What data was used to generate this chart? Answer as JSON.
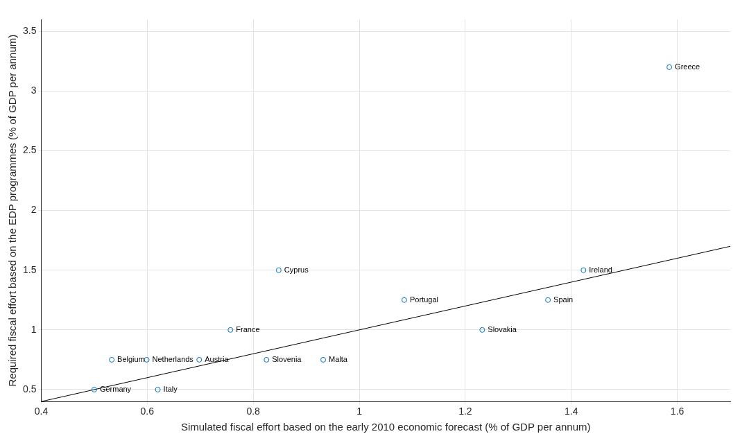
{
  "chart_data": {
    "type": "scatter",
    "xlabel": "Simulated fiscal effort based on the early 2010 economic forecast (% of GDP per annum)",
    "ylabel": "Required fiscal effort based on the EDP programmes (% of GDP per annum)",
    "xlim": [
      0.4,
      1.7
    ],
    "xticks": [
      0.4,
      0.6,
      0.8,
      {
        "value": 1,
        "label": "1"
      },
      1.2,
      1.4,
      1.6
    ],
    "ylim": [
      0.4,
      3.6
    ],
    "yticks": [
      0.5,
      {
        "value": 1,
        "label": "1"
      },
      1.5,
      {
        "value": 2,
        "label": "2"
      },
      2.5,
      {
        "value": 3,
        "label": "3"
      },
      3.5
    ],
    "grid": true,
    "legend": false,
    "marker": "circle",
    "series": [
      {
        "color": "#0072bd",
        "x": [
          1.585,
          1.423,
          1.356,
          1.232,
          1.085,
          0.848,
          0.757,
          0.533,
          0.599,
          0.698,
          0.825,
          0.932,
          0.5,
          0.62
        ],
        "values": [
          3.2,
          1.5,
          1.25,
          1,
          1.25,
          1.5,
          1,
          0.75,
          0.75,
          0.75,
          0.75,
          0.75,
          0.5,
          0.5
        ]
      },
      {
        "type": "line",
        "color": "#000000",
        "marker": "none",
        "x": [
          0.4,
          1.7
        ],
        "values": [
          0.4,
          1.7
        ]
      }
    ],
    "annotations": [
      {
        "text": "Greece",
        "x": 1.585,
        "y": 3.2
      },
      {
        "text": "Ireland",
        "x": 1.423,
        "y": 1.5
      },
      {
        "text": "Spain",
        "x": 1.356,
        "y": 1.25
      },
      {
        "text": "Slovakia",
        "x": 1.232,
        "y": 1
      },
      {
        "text": "Portugal",
        "x": 1.085,
        "y": 1.25
      },
      {
        "text": "Cyprus",
        "x": 0.848,
        "y": 1.5
      },
      {
        "text": "France",
        "x": 0.757,
        "y": 1
      },
      {
        "text": "Belgium",
        "x": 0.533,
        "y": 0.75
      },
      {
        "text": "Netherlands",
        "x": 0.599,
        "y": 0.75
      },
      {
        "text": "Austria",
        "x": 0.698,
        "y": 0.75
      },
      {
        "text": "Slovenia",
        "x": 0.825,
        "y": 0.75
      },
      {
        "text": "Malta",
        "x": 0.932,
        "y": 0.75
      },
      {
        "text": "Germany",
        "x": 0.5,
        "y": 0.5
      },
      {
        "text": "Italy",
        "x": 0.62,
        "y": 0.5
      }
    ]
  }
}
